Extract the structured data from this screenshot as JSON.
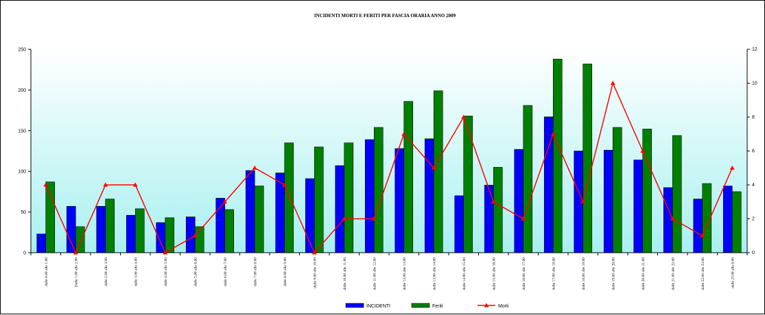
{
  "chart_data": {
    "type": "bar",
    "title": "INCIDENTI MORTI E FERITI PER FASCIA ORARIA ANNO 2009",
    "categories": [
      "dalle 0.00 alle 1.00",
      "Dalle 1.00 alle 2.00",
      "dalle 2.00 alle 3.00",
      "dalle 3.00 alle 4.00",
      "dalle 4.00 alle 5.00",
      "dalle 5.00 alle 6.00",
      "dalle 6.00 alle 7.00",
      "dalle 7.00 alle 8.00",
      "dalle 8.00 alle 9.00",
      "dalle 9.00 alle 10.00",
      "dalle 10.00 alle 11.00",
      "dalle 11.00 alle 12.00",
      "dalle 12.00 alle 13.00",
      "dalle 13.00 alle 14.00",
      "dalle 14.00 alle 15.00",
      "dalle 15.00 alle 16.00",
      "dalle 16.00 alle 17.00",
      "dalle 17.00 alle 18.00",
      "dalle 18.00 alle 19.00",
      "dalle 19.00 alle 20.00",
      "dalle 20.00 alle 21.00",
      "dalle 21.00 alle 22.00",
      "dalle 22.00 alle 23.00",
      "dalle 23.00 alle 0.00"
    ],
    "series": [
      {
        "name": "INCIDENTI",
        "axis": "left",
        "kind": "bar",
        "color": "#0000ff",
        "values": [
          23,
          57,
          57,
          46,
          37,
          44,
          67,
          101,
          98,
          91,
          107,
          139,
          128,
          140,
          70,
          83,
          127,
          167,
          125,
          126,
          114,
          80,
          66,
          82
        ]
      },
      {
        "name": "Feriti",
        "axis": "left",
        "kind": "bar",
        "color": "#008000",
        "values": [
          87,
          32,
          66,
          54,
          43,
          32,
          53,
          82,
          135,
          130,
          135,
          154,
          186,
          199,
          168,
          105,
          181,
          238,
          232,
          154,
          152,
          144,
          85,
          75
        ]
      },
      {
        "name": "Morti",
        "axis": "right",
        "kind": "line",
        "color": "#ff0000",
        "values": [
          4,
          0,
          4,
          4,
          0,
          1,
          3,
          5,
          4,
          0,
          2,
          2,
          7,
          5,
          8,
          3,
          2,
          7,
          3,
          10,
          6,
          2,
          1,
          5
        ]
      }
    ],
    "ylim": [
      0,
      250
    ],
    "y_ticks": [
      "0",
      "50",
      "100",
      "150",
      "200",
      "250"
    ],
    "y2lim": [
      0,
      12
    ],
    "y2_ticks": [
      "0",
      "2",
      "4",
      "6",
      "8",
      "10",
      "12"
    ],
    "plot_background": "gradient white-to-cyan",
    "grid": false,
    "legend_position": "bottom"
  }
}
